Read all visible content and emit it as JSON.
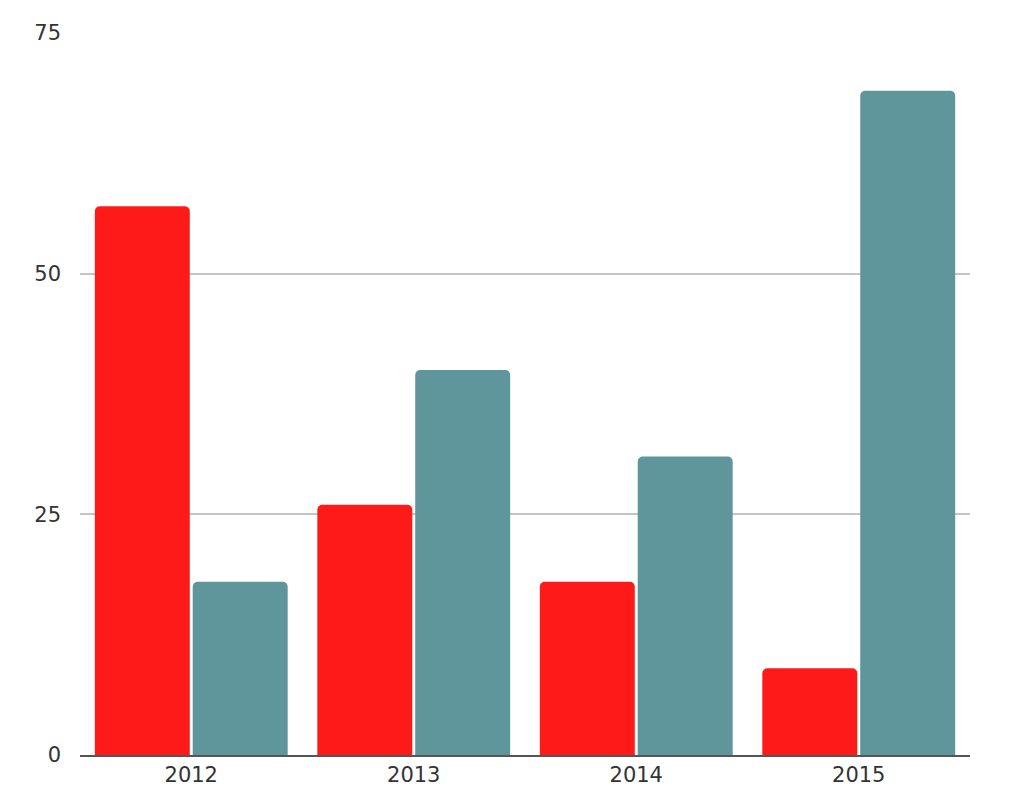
{
  "chart_data": {
    "type": "bar",
    "categories": [
      "2012",
      "2013",
      "2014",
      "2015"
    ],
    "series": [
      {
        "color": "#ff1a1a",
        "values": [
          57,
          26,
          18,
          9
        ]
      },
      {
        "color": "#5e969c",
        "values": [
          18,
          40,
          31,
          69
        ]
      }
    ],
    "ylim": [
      0,
      75
    ],
    "yticks": [
      0,
      25,
      50,
      75
    ],
    "grid": true
  }
}
